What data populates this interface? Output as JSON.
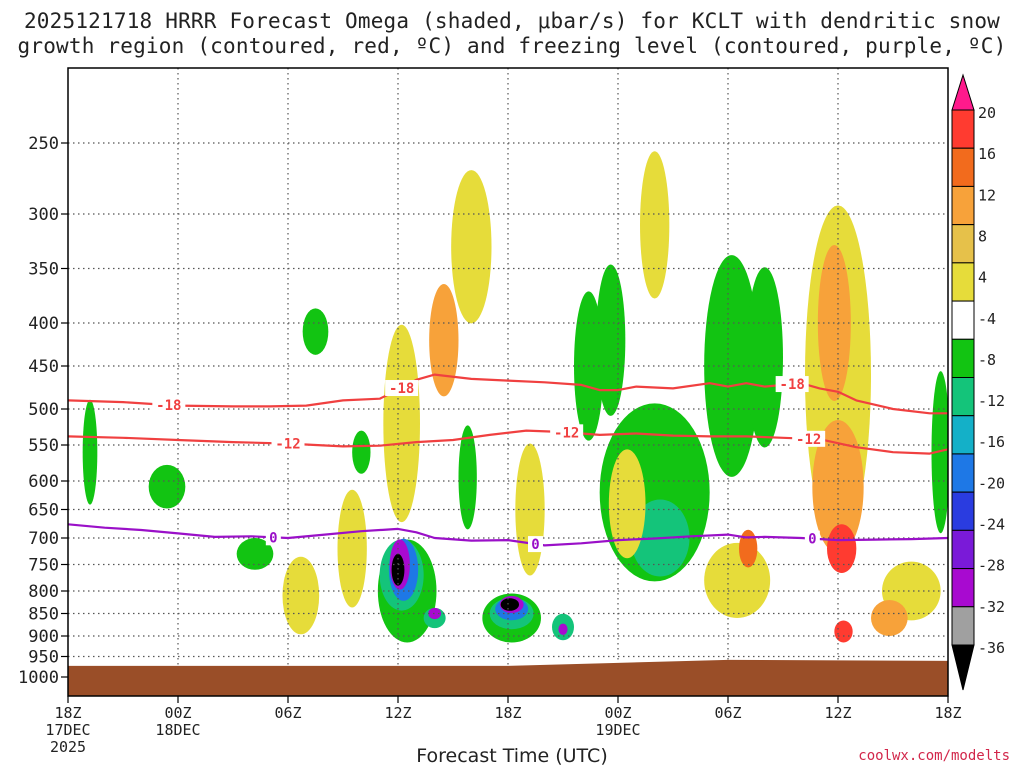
{
  "chart_data": {
    "type": "heatmap",
    "title_line_1": "2025121718 HRRR Forecast Omega (shaded, μbar/s) for KCLT with dendritic snow",
    "title_line_2": "growth region (contoured, red, ºC) and freezing level (contoured, purple, ºC)",
    "xlabel": "Forecast Time (UTC)",
    "ylabel": "",
    "watermark": "coolwx.com/modelts",
    "x_range_hours": [
      0,
      48
    ],
    "y_range_hpa": [
      1000,
      200
    ],
    "y_ticks": [
      {
        "value": 250,
        "label": "250"
      },
      {
        "value": 300,
        "label": "300"
      },
      {
        "value": 350,
        "label": "350"
      },
      {
        "value": 400,
        "label": "400"
      },
      {
        "value": 450,
        "label": "450"
      },
      {
        "value": 500,
        "label": "500"
      },
      {
        "value": 550,
        "label": "550"
      },
      {
        "value": 600,
        "label": "600"
      },
      {
        "value": 650,
        "label": "650"
      },
      {
        "value": 700,
        "label": "700"
      },
      {
        "value": 750,
        "label": "750"
      },
      {
        "value": 800,
        "label": "800"
      },
      {
        "value": 850,
        "label": "850"
      },
      {
        "value": 900,
        "label": "900"
      },
      {
        "value": 950,
        "label": "950"
      },
      {
        "value": 1000,
        "label": "1000"
      }
    ],
    "x_ticks": [
      {
        "hour": 0,
        "lines": [
          "18Z",
          "17DEC",
          "2025"
        ]
      },
      {
        "hour": 6,
        "lines": [
          "00Z",
          "18DEC"
        ]
      },
      {
        "hour": 12,
        "lines": [
          "06Z"
        ]
      },
      {
        "hour": 18,
        "lines": [
          "12Z"
        ]
      },
      {
        "hour": 24,
        "lines": [
          "18Z"
        ]
      },
      {
        "hour": 30,
        "lines": [
          "00Z",
          "19DEC"
        ]
      },
      {
        "hour": 36,
        "lines": [
          "06Z"
        ]
      },
      {
        "hour": 42,
        "lines": [
          "12Z"
        ]
      },
      {
        "hour": 48,
        "lines": [
          "18Z"
        ]
      }
    ],
    "colorbar": {
      "labels": [
        "20",
        "16",
        "12",
        "8",
        "4",
        "-4",
        "-8",
        "-12",
        "-16",
        "-20",
        "-24",
        "-28",
        "-32",
        "-36"
      ],
      "colors_top_to_bottom": [
        "#ff1a8c",
        "#ff3b30",
        "#f26b1d",
        "#f7a23a",
        "#e6c14a",
        "#e6dc3a",
        "#ffffff",
        "#12c412",
        "#14c47a",
        "#14b0c8",
        "#1e78e6",
        "#2a3ce0",
        "#7a1ad8",
        "#a80ad0",
        "#a0a0a0",
        "#000000"
      ]
    },
    "contours": [
      {
        "name": "dgz-minus-18",
        "label": "-18",
        "color": "#f04040",
        "points": [
          [
            0,
            490
          ],
          [
            3,
            492
          ],
          [
            6,
            496
          ],
          [
            9,
            497
          ],
          [
            11,
            497
          ],
          [
            13,
            496
          ],
          [
            15,
            490
          ],
          [
            17,
            488
          ],
          [
            18,
            478
          ],
          [
            19,
            466
          ],
          [
            20,
            460
          ],
          [
            22,
            465
          ],
          [
            24,
            467
          ],
          [
            26,
            469
          ],
          [
            28,
            472
          ],
          [
            29,
            478
          ],
          [
            30,
            478
          ],
          [
            31,
            474
          ],
          [
            33,
            476
          ],
          [
            35,
            470
          ],
          [
            36,
            474
          ],
          [
            37,
            470
          ],
          [
            38,
            474
          ],
          [
            40,
            470
          ],
          [
            41,
            476
          ],
          [
            42,
            480
          ],
          [
            43,
            490
          ],
          [
            45,
            500
          ],
          [
            47,
            506
          ],
          [
            48,
            506
          ]
        ],
        "label_hours": [
          5.5,
          18.2,
          39.5
        ]
      },
      {
        "name": "dgz-minus-12",
        "label": "-12",
        "color": "#f04040",
        "points": [
          [
            0,
            538
          ],
          [
            3,
            540
          ],
          [
            6,
            543
          ],
          [
            9,
            546
          ],
          [
            12,
            548
          ],
          [
            15,
            552
          ],
          [
            17,
            551
          ],
          [
            19,
            546
          ],
          [
            21,
            543
          ],
          [
            23,
            536
          ],
          [
            25,
            530
          ],
          [
            27,
            532
          ],
          [
            29,
            536
          ],
          [
            31,
            534
          ],
          [
            33,
            537
          ],
          [
            35,
            538
          ],
          [
            37,
            538
          ],
          [
            39,
            540
          ],
          [
            41,
            542
          ],
          [
            43,
            553
          ],
          [
            45,
            560
          ],
          [
            47,
            562
          ],
          [
            48,
            556
          ]
        ],
        "label_hours": [
          12.0,
          27.2,
          40.4
        ]
      },
      {
        "name": "freezing-level",
        "label": "0",
        "color": "#9a10c8",
        "points": [
          [
            0,
            676
          ],
          [
            2,
            682
          ],
          [
            4,
            686
          ],
          [
            6,
            692
          ],
          [
            8,
            698
          ],
          [
            10,
            697
          ],
          [
            12,
            700
          ],
          [
            14,
            694
          ],
          [
            16,
            688
          ],
          [
            18,
            684
          ],
          [
            19,
            690
          ],
          [
            20,
            700
          ],
          [
            22,
            705
          ],
          [
            24,
            704
          ],
          [
            26,
            714
          ],
          [
            28,
            710
          ],
          [
            30,
            704
          ],
          [
            32,
            701
          ],
          [
            34,
            697
          ],
          [
            36,
            694
          ],
          [
            37,
            699
          ],
          [
            38,
            698
          ],
          [
            40,
            700
          ],
          [
            42,
            704
          ],
          [
            44,
            703
          ],
          [
            46,
            702
          ],
          [
            48,
            700
          ]
        ],
        "label_hours": [
          11.2,
          25.5,
          40.6
        ]
      }
    ],
    "omega_cells": [
      {
        "h": 32,
        "p": 620,
        "v": -8,
        "rh": 3.0,
        "rp": 280
      },
      {
        "h": 32.3,
        "p": 700,
        "v": -12,
        "rh": 1.6,
        "rp": 140
      },
      {
        "h": 29.6,
        "p": 420,
        "v": -8,
        "rh": 0.8,
        "rp": 160
      },
      {
        "h": 36.2,
        "p": 450,
        "v": -8,
        "rh": 1.5,
        "rp": 250
      },
      {
        "h": 38.0,
        "p": 440,
        "v": -8,
        "rh": 1.0,
        "rp": 200
      },
      {
        "h": 28.4,
        "p": 450,
        "v": -8,
        "rh": 0.8,
        "rp": 170
      },
      {
        "h": 5.4,
        "p": 610,
        "v": -8,
        "rh": 1.0,
        "rp": 70
      },
      {
        "h": 10.2,
        "p": 730,
        "v": -8,
        "rh": 1.0,
        "rp": 60
      },
      {
        "h": 13.5,
        "p": 410,
        "v": -8,
        "rh": 0.7,
        "rp": 50
      },
      {
        "h": 1.2,
        "p": 560,
        "v": -8,
        "rh": 0.4,
        "rp": 150
      },
      {
        "h": 16.0,
        "p": 560,
        "v": -8,
        "rh": 0.5,
        "rp": 60
      },
      {
        "h": 21.8,
        "p": 595,
        "v": -8,
        "rh": 0.5,
        "rp": 160
      },
      {
        "h": 47.6,
        "p": 560,
        "v": -8,
        "rh": 0.5,
        "rp": 230
      },
      {
        "h": 22.0,
        "p": 330,
        "v": 4,
        "rh": 1.1,
        "rp": 130
      },
      {
        "h": 32.0,
        "p": 310,
        "v": 4,
        "rh": 0.8,
        "rp": 120
      },
      {
        "h": 42.0,
        "p": 460,
        "v": 4,
        "rh": 1.8,
        "rp": 380
      },
      {
        "h": 41.8,
        "p": 400,
        "v": 8,
        "rh": 0.9,
        "rp": 160
      },
      {
        "h": 42.0,
        "p": 610,
        "v": 8,
        "rh": 1.4,
        "rp": 210
      },
      {
        "h": 20.5,
        "p": 420,
        "v": 8,
        "rh": 0.8,
        "rp": 120
      },
      {
        "h": 30.5,
        "p": 640,
        "v": 4,
        "rh": 1.0,
        "rp": 180
      },
      {
        "h": 36.5,
        "p": 780,
        "v": 4,
        "rh": 1.8,
        "rp": 150
      },
      {
        "h": 46.0,
        "p": 800,
        "v": 4,
        "rh": 1.6,
        "rp": 120
      },
      {
        "h": 15.5,
        "p": 720,
        "v": 4,
        "rh": 0.8,
        "rp": 220
      },
      {
        "h": 12.7,
        "p": 810,
        "v": 4,
        "rh": 1.0,
        "rp": 160
      },
      {
        "h": 18.2,
        "p": 520,
        "v": 4,
        "rh": 1.0,
        "rp": 260
      },
      {
        "h": 25.2,
        "p": 650,
        "v": 4,
        "rh": 0.8,
        "rp": 220
      },
      {
        "h": 42.2,
        "p": 720,
        "v": 16,
        "rh": 0.8,
        "rp": 90
      },
      {
        "h": 37.1,
        "p": 720,
        "v": 12,
        "rh": 0.5,
        "rp": 70
      },
      {
        "h": 42.3,
        "p": 890,
        "v": 16,
        "rh": 0.5,
        "rp": 50
      },
      {
        "h": 44.8,
        "p": 860,
        "v": 8,
        "rh": 1.0,
        "rp": 80
      },
      {
        "h": 18.5,
        "p": 800,
        "v": -8,
        "rh": 1.6,
        "rp": 210
      },
      {
        "h": 18.2,
        "p": 770,
        "v": -12,
        "rh": 1.2,
        "rp": 140
      },
      {
        "h": 18.3,
        "p": 760,
        "v": -20,
        "rh": 0.8,
        "rp": 120
      },
      {
        "h": 18.1,
        "p": 750,
        "v": -28,
        "rh": 0.55,
        "rp": 95
      },
      {
        "h": 18.0,
        "p": 760,
        "v": -36,
        "rh": 0.35,
        "rp": 60
      },
      {
        "h": 24.2,
        "p": 860,
        "v": -8,
        "rh": 1.6,
        "rp": 110
      },
      {
        "h": 24.2,
        "p": 850,
        "v": -12,
        "rh": 1.2,
        "rp": 70
      },
      {
        "h": 24.2,
        "p": 840,
        "v": -20,
        "rh": 0.9,
        "rp": 50
      },
      {
        "h": 24.2,
        "p": 830,
        "v": -28,
        "rh": 0.65,
        "rp": 38
      },
      {
        "h": 24.1,
        "p": 830,
        "v": -36,
        "rh": 0.5,
        "rp": 28
      },
      {
        "h": 20.0,
        "p": 860,
        "v": -12,
        "rh": 0.6,
        "rp": 45
      },
      {
        "h": 20.0,
        "p": 850,
        "v": -28,
        "rh": 0.35,
        "rp": 25
      },
      {
        "h": 27.0,
        "p": 880,
        "v": -12,
        "rh": 0.6,
        "rp": 60
      },
      {
        "h": 27.0,
        "p": 885,
        "v": -28,
        "rh": 0.25,
        "rp": 25
      }
    ],
    "surface_fill_color": "#9a4e28",
    "surface_pressure_hpa": 985
  }
}
